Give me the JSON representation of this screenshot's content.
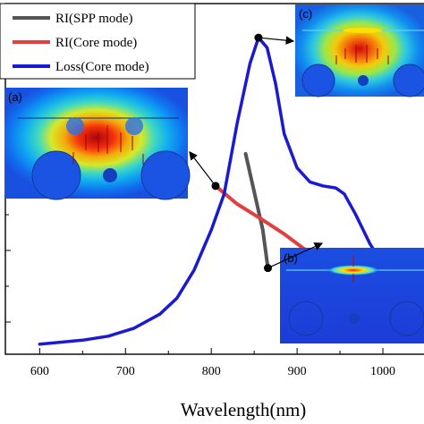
{
  "chart_data": {
    "type": "line",
    "xlabel": "Wavelength(nm)",
    "xlim": [
      560,
      1050
    ],
    "x_ticks": [
      600,
      700,
      800,
      900,
      1000
    ],
    "x_tick_labels": [
      "600",
      "700",
      "800",
      "900",
      "1000"
    ],
    "legend": {
      "placement": "top-left"
    },
    "series": [
      {
        "name": "RI(SPP mode)",
        "color": "#555555",
        "points": [
          [
            840,
            1.0
          ],
          [
            860,
            0.62
          ],
          [
            866,
            0.43
          ]
        ]
      },
      {
        "name": "RI(Core mode)",
        "color": "#e04040",
        "points": [
          [
            805,
            0.84
          ],
          [
            830,
            0.75
          ],
          [
            860,
            0.67
          ],
          [
            885,
            0.6
          ],
          [
            910,
            0.52
          ]
        ]
      },
      {
        "name": "Loss(Core mode)",
        "color": "#1a1ad0",
        "points": [
          [
            600,
            0.05
          ],
          [
            650,
            0.07
          ],
          [
            680,
            0.09
          ],
          [
            710,
            0.13
          ],
          [
            740,
            0.2
          ],
          [
            760,
            0.28
          ],
          [
            780,
            0.42
          ],
          [
            800,
            0.62
          ],
          [
            815,
            0.8
          ],
          [
            830,
            1.15
          ],
          [
            845,
            1.45
          ],
          [
            855,
            1.58
          ],
          [
            865,
            1.53
          ],
          [
            875,
            1.35
          ],
          [
            885,
            1.1
          ],
          [
            900,
            0.93
          ],
          [
            915,
            0.86
          ],
          [
            930,
            0.84
          ],
          [
            945,
            0.83
          ],
          [
            955,
            0.8
          ],
          [
            968,
            0.7
          ],
          [
            985,
            0.55
          ],
          [
            1000,
            0.45
          ]
        ]
      }
    ],
    "panels": [
      {
        "label": "(a)"
      },
      {
        "label": "(b)"
      },
      {
        "label": "(c)"
      }
    ]
  }
}
